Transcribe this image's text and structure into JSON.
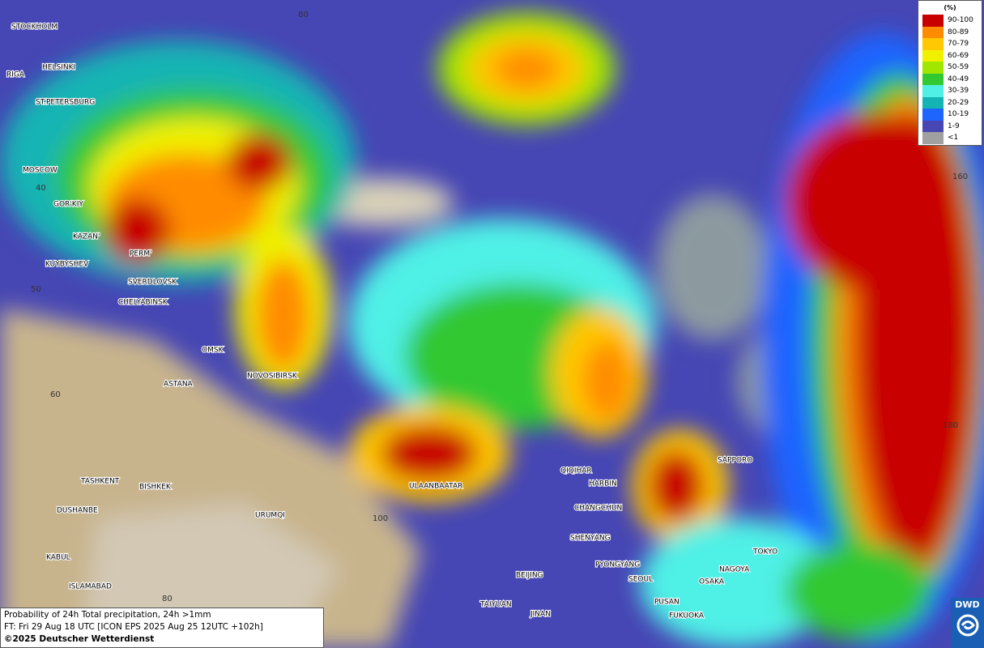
{
  "map": {
    "cities": [
      "STOCKHOLM",
      "HELSINKI",
      "RIGA",
      "ST.PETERSBURG",
      "MOSCOW",
      "GOR'KIY",
      "KAZAN'",
      "PERM'",
      "KUYBYSHEV",
      "SVERDLOVSK",
      "CHELYABINSK",
      "OMSK",
      "ASTANA",
      "NOVOSIBIRSK",
      "TASHKENT",
      "BISHKEK",
      "DUSHANBE",
      "URUMQI",
      "KABUL",
      "ISLAMABAD",
      "ULAANBAATAR",
      "QIQIHAR",
      "HARBIN",
      "CHANGCHUN",
      "SHENYANG",
      "PYONGYANG",
      "SEOUL",
      "BEIJING",
      "TAIYUAN",
      "JINAN",
      "PUSAN",
      "FUKUOKA",
      "OSAKA",
      "NAGOYA",
      "TOKYO",
      "SAPPORO"
    ],
    "grid_labels": [
      "80",
      "40",
      "50",
      "60",
      "100",
      "80",
      "160",
      "180"
    ]
  },
  "legend": {
    "title": "(%)",
    "items": [
      {
        "label": "90-100",
        "color": "#c80000"
      },
      {
        "label": "80-89",
        "color": "#ff8c00"
      },
      {
        "label": "70-79",
        "color": "#ffc800"
      },
      {
        "label": "60-69",
        "color": "#f0f000"
      },
      {
        "label": "50-59",
        "color": "#a0e600"
      },
      {
        "label": "40-49",
        "color": "#32c832"
      },
      {
        "label": "30-39",
        "color": "#50f0e6"
      },
      {
        "label": "20-29",
        "color": "#14b4b4"
      },
      {
        "label": "10-19",
        "color": "#1e64ff"
      },
      {
        "label": "1-9",
        "color": "#4646b4"
      },
      {
        "label": "<1",
        "color": "#a0a0a0"
      }
    ]
  },
  "info": {
    "line1": "Probability of 24h Total precipitation, 24h >1mm",
    "line2": "FT: Fri 29 Aug 18 UTC [ICON EPS 2025 Aug 25 12UTC +102h]",
    "copyright": "©2025 Deutscher Wetterdienst"
  },
  "logo": "DWD"
}
